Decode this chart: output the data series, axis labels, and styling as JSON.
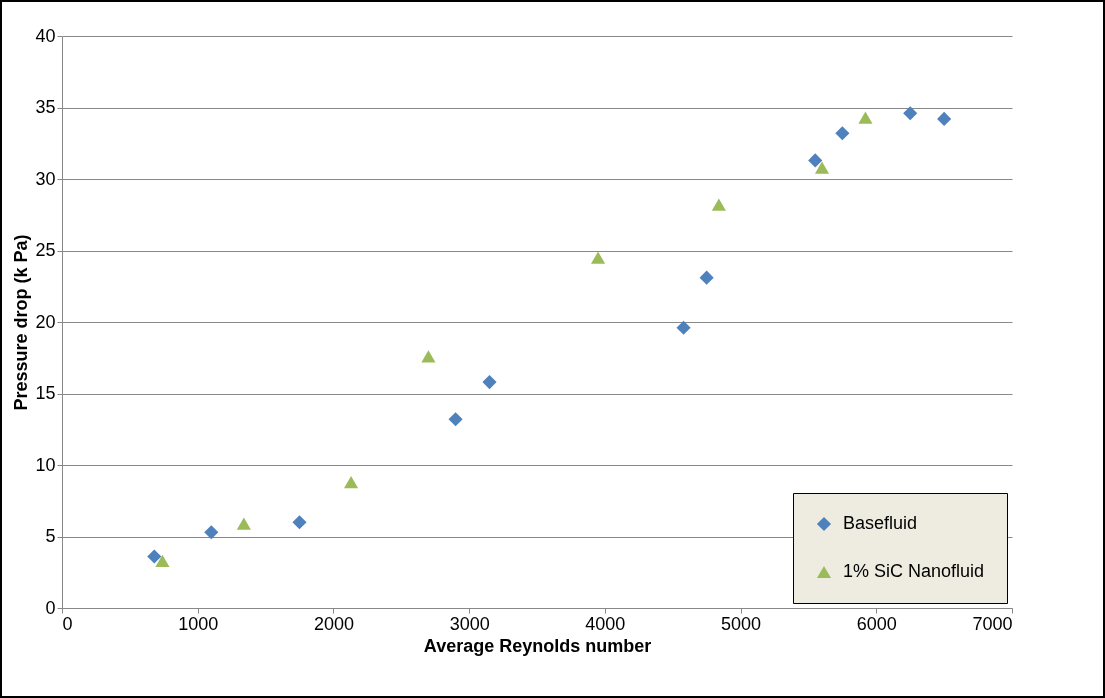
{
  "chart_data": {
    "type": "scatter",
    "xlabel": "Average Reynolds number",
    "ylabel": "Pressure drop (k Pa)",
    "xlim": [
      0,
      7000
    ],
    "xticks": [
      0,
      1000,
      2000,
      3000,
      4000,
      5000,
      6000,
      7000
    ],
    "ylim": [
      0,
      40
    ],
    "yticks": [
      0,
      5,
      10,
      15,
      20,
      25,
      30,
      35,
      40
    ],
    "grid": "y",
    "legend": "bottom right",
    "series": [
      {
        "name": "Basefluid",
        "color": "#4f81bd",
        "marker": "diamond",
        "x": [
          680,
          1100,
          1750,
          2900,
          3150,
          4580,
          4750,
          5550,
          5750,
          6250,
          6500
        ],
        "values": [
          3.6,
          5.3,
          6.0,
          13.2,
          15.8,
          19.6,
          23.1,
          31.3,
          33.2,
          34.6,
          34.2
        ]
      },
      {
        "name": "1% SiC Nanofluid",
        "color": "#9bbb59",
        "marker": "triangle",
        "x": [
          740,
          1340,
          2130,
          2700,
          3950,
          4840,
          5600,
          5920
        ],
        "values": [
          3.3,
          5.9,
          8.8,
          17.6,
          24.5,
          28.2,
          30.8,
          34.3
        ]
      }
    ]
  }
}
